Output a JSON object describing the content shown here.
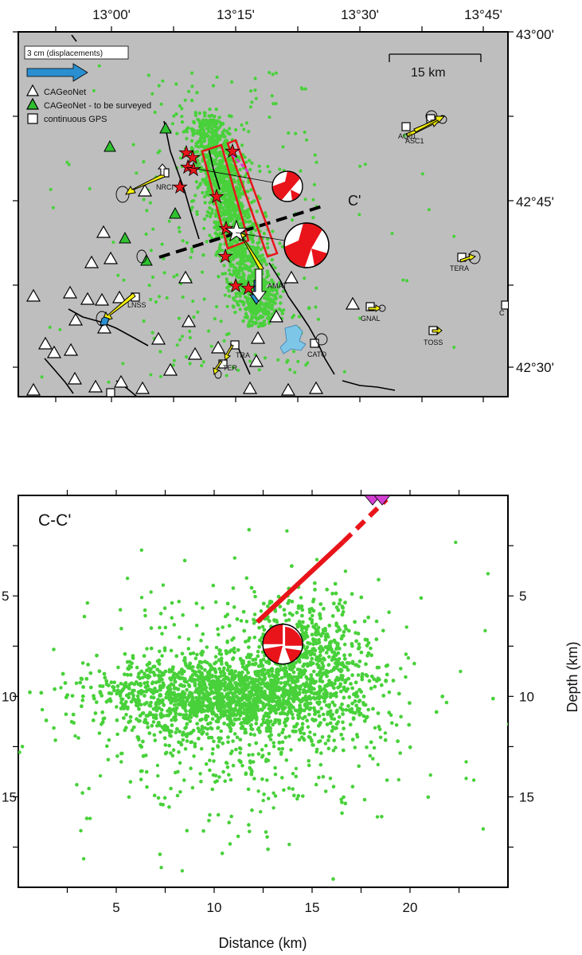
{
  "map": {
    "lon_ticks": [
      "13°00'",
      "13°15'",
      "13°30'",
      "13°45'"
    ],
    "lat_ticks": [
      "43°00'",
      "42°45'",
      "42°30'"
    ],
    "legend": {
      "displacement_label": "3 cm (displacements)",
      "items": [
        "CAGeoNet",
        "CAGeoNet - to be surveyed",
        "continuous GPS"
      ]
    },
    "scale_label": "15 km",
    "profile_end_label": "C'",
    "stations": [
      "ASC1",
      "AQ01",
      "NRCI",
      "AMAT",
      "TERA",
      "LNSS",
      "GNAL",
      "TOSS",
      "CATO",
      "TRA",
      "TER",
      "C"
    ]
  },
  "section": {
    "title": "C-C'",
    "xlabel": "Distance (km)",
    "ylabel": "Depth (km)",
    "x_ticks": [
      "5",
      "10",
      "15",
      "20"
    ],
    "y_ticks": [
      "5",
      "10",
      "15"
    ],
    "xlim": [
      0,
      25
    ],
    "ylim": [
      0,
      19.5
    ],
    "fault_solid": [
      [
        12.2,
        6.3
      ],
      [
        16.6,
        2.3
      ]
    ],
    "fault_dashed": [
      [
        16.6,
        2.3
      ],
      [
        18.8,
        0.2
      ]
    ],
    "mechanism": {
      "x": 13.5,
      "depth": 7.4
    }
  },
  "colors": {
    "map_bg": "#bebebe",
    "seismicity": "#48d13a",
    "fault_trace": "#e8141a",
    "horizontal_arrow": "#f7f20a",
    "vertical_arrow": "#2a8fd0",
    "legend_arrow": "#2a8fd0",
    "lake": "#7ec6e8",
    "to_survey": "#2fc12f"
  }
}
